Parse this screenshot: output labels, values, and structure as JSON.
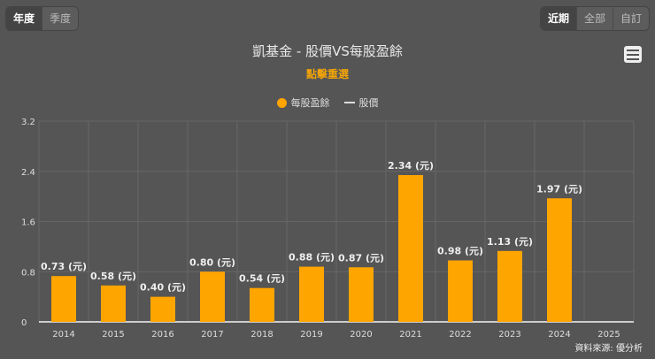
{
  "controls": {
    "period_buttons": [
      {
        "label": "年度",
        "active": true
      },
      {
        "label": "季度",
        "active": false
      }
    ],
    "range_buttons": [
      {
        "label": "近期",
        "active": true
      },
      {
        "label": "全部",
        "active": false
      },
      {
        "label": "自訂",
        "active": false
      }
    ]
  },
  "title": "凱基金 - 股價VS每股盈餘",
  "subtitle": "點擊重選",
  "menu_icon": "hamburger-menu-icon",
  "legend": [
    {
      "label": "每股盈餘",
      "symbol": "circle",
      "color": "#ffa500"
    },
    {
      "label": "股價",
      "symbol": "line",
      "color": "#dddddd"
    }
  ],
  "credit": "資料來源: 優分析",
  "chart_data": {
    "type": "bar",
    "title": "凱基金 - 股價VS每股盈餘",
    "categories": [
      "2014",
      "2015",
      "2016",
      "2017",
      "2018",
      "2019",
      "2020",
      "2021",
      "2022",
      "2023",
      "2024",
      "2025"
    ],
    "series": [
      {
        "name": "每股盈餘",
        "color": "#ffa500",
        "values": [
          0.73,
          0.58,
          0.4,
          0.8,
          0.54,
          0.88,
          0.87,
          2.34,
          0.98,
          1.13,
          1.97,
          null
        ],
        "data_labels": [
          "0.73 (元)",
          "0.58 (元)",
          "0.40 (元)",
          "0.80 (元)",
          "0.54 (元)",
          "0.88 (元)",
          "0.87 (元)",
          "2.34 (元)",
          "0.98 (元)",
          "1.13 (元)",
          "1.97 (元)",
          null
        ]
      }
    ],
    "yticks": [
      "0",
      "0.8",
      "1.6",
      "2.4",
      "3.2"
    ],
    "ylim": [
      0,
      3.2
    ],
    "grid": true,
    "legend_position": "top"
  }
}
